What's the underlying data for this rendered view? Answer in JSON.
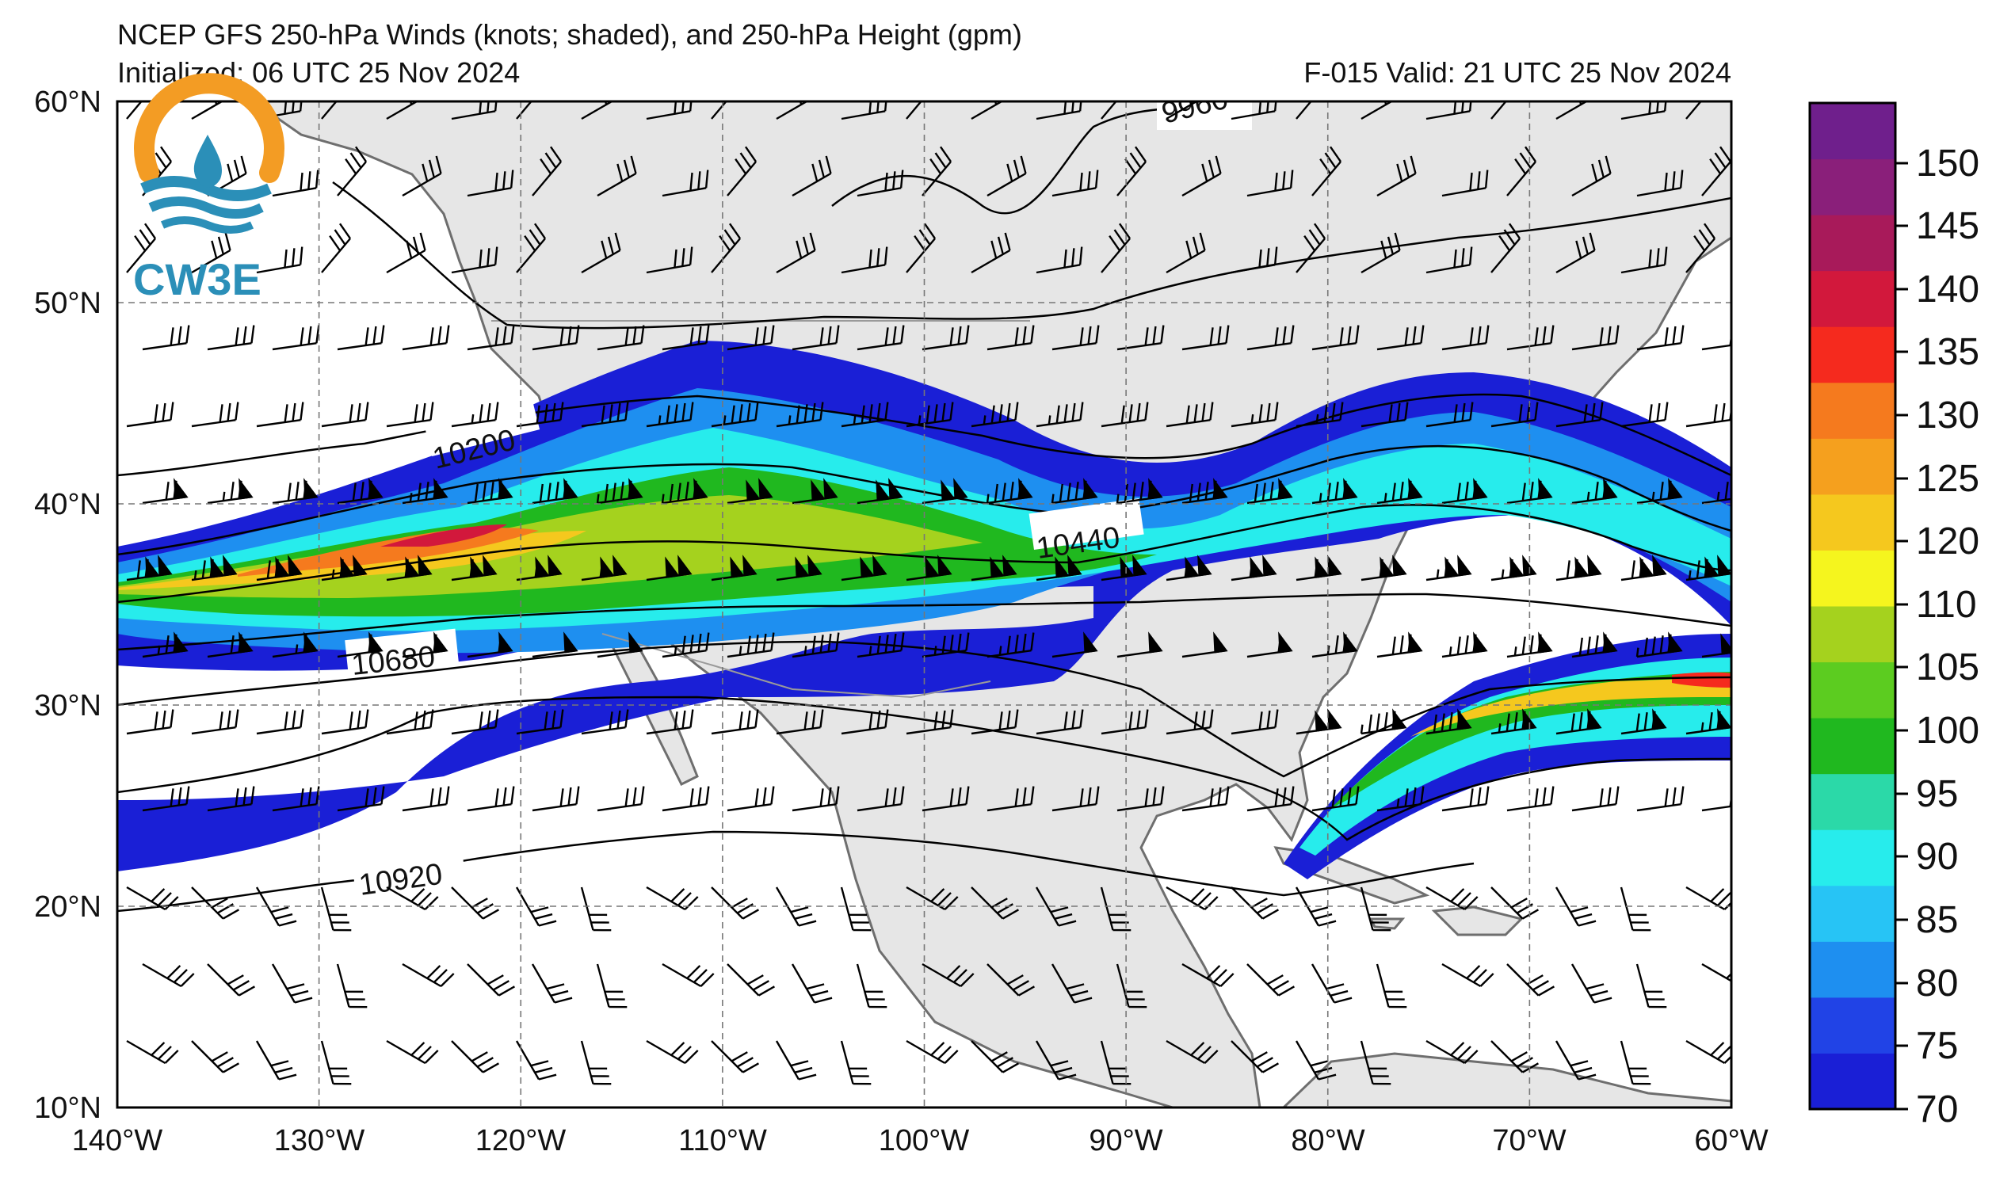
{
  "header": {
    "title": "NCEP GFS 250-hPa Winds (knots; shaded), and 250-hPa Height (gpm)",
    "initialized": "Initialized: 06 UTC 25 Nov 2024",
    "valid": "F-015  Valid: 21 UTC 25 Nov 2024"
  },
  "logo": {
    "text": "CW3E"
  },
  "map": {
    "lon_labels": [
      "140°W",
      "130°W",
      "120°W",
      "110°W",
      "100°W",
      "90°W",
      "80°W",
      "70°W",
      "60°W"
    ],
    "lat_labels": [
      "60°N",
      "50°N",
      "40°N",
      "30°N",
      "20°N",
      "10°N"
    ],
    "lon_range": [
      -140,
      -60
    ],
    "lat_range": [
      10,
      60
    ],
    "land_color": "#e6e6e6",
    "ocean_color": "#ffffff",
    "contour_labels": [
      "9960",
      "10200",
      "10440",
      "10680",
      "10920"
    ]
  },
  "colorbar": {
    "ticks": [
      "70",
      "75",
      "80",
      "85",
      "90",
      "95",
      "100",
      "105",
      "110",
      "120",
      "125",
      "130",
      "135",
      "140",
      "145",
      "150"
    ],
    "colors": [
      "#1a1fd6",
      "#2143e6",
      "#1e8ff0",
      "#27c4f5",
      "#27ecec",
      "#2bd9a8",
      "#20b81f",
      "#5ccc20",
      "#a5d21e",
      "#f5f51e",
      "#f5c81e",
      "#f5a01e",
      "#f57a1e",
      "#f52a1e",
      "#d2183c",
      "#a81a5a",
      "#8a1f7a",
      "#6f1f8c"
    ]
  }
}
